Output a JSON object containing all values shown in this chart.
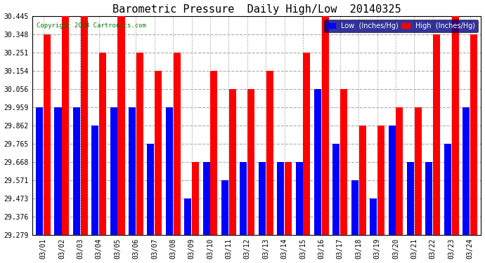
{
  "title": "Barometric Pressure  Daily High/Low  20140325",
  "copyright": "Copyright 2014 Cartronics.com",
  "legend_low": "Low  (Inches/Hg)",
  "legend_high": "High  (Inches/Hg)",
  "dates": [
    "03/01",
    "03/02",
    "03/03",
    "03/04",
    "03/05",
    "03/06",
    "03/07",
    "03/08",
    "03/09",
    "03/10",
    "03/11",
    "03/12",
    "03/13",
    "03/14",
    "03/15",
    "03/16",
    "03/17",
    "03/18",
    "03/19",
    "03/20",
    "03/21",
    "03/22",
    "03/23",
    "03/24"
  ],
  "low": [
    29.959,
    29.959,
    29.959,
    29.862,
    29.959,
    29.959,
    29.765,
    29.959,
    29.473,
    29.668,
    29.571,
    29.668,
    29.668,
    29.668,
    29.668,
    30.056,
    29.765,
    29.571,
    29.473,
    29.862,
    29.668,
    29.668,
    29.765,
    29.959
  ],
  "high": [
    30.348,
    30.445,
    30.445,
    30.251,
    30.445,
    30.251,
    30.154,
    30.251,
    29.668,
    30.154,
    30.056,
    30.056,
    30.154,
    29.668,
    30.251,
    30.445,
    30.056,
    29.862,
    29.862,
    29.959,
    29.959,
    30.348,
    30.445,
    30.348
  ],
  "yticks": [
    29.279,
    29.376,
    29.473,
    29.571,
    29.668,
    29.765,
    29.862,
    29.959,
    30.056,
    30.154,
    30.251,
    30.348,
    30.445
  ],
  "ylim_min": 29.279,
  "ylim_max": 30.445,
  "bar_color_low": "#0000ff",
  "bar_color_high": "#ff0000",
  "bg_color": "#ffffff",
  "grid_color": "#aaaaaa",
  "title_fontsize": 11
}
